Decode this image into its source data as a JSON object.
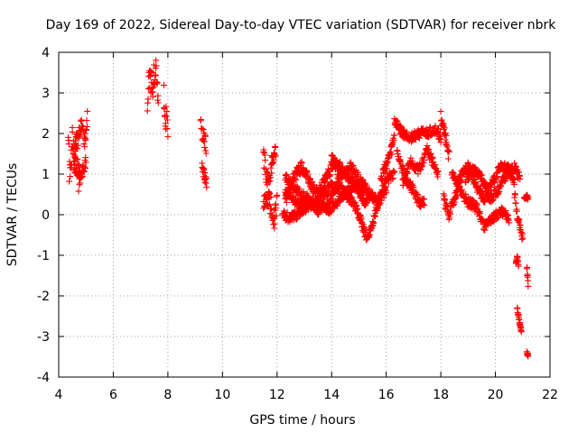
{
  "chart_data": {
    "type": "scatter",
    "title": "Day 169 of 2022, Sidereal Day-to-day VTEC variation (SDTVAR) for receiver nbrk",
    "xlabel": "GPS time / hours",
    "ylabel": "SDTVAR / TECUs",
    "xlim": [
      4,
      22
    ],
    "ylim": [
      -4,
      4
    ],
    "xticks": [
      "4",
      "6",
      "8",
      "10",
      "12",
      "14",
      "16",
      "18",
      "20",
      "22"
    ],
    "yticks": [
      "-4",
      "-3",
      "-2",
      "-1",
      "0",
      "1",
      "2",
      "3",
      "4"
    ],
    "grid": true,
    "marker": "+",
    "color": "#ff0000",
    "series": [
      {
        "name": "sdtvar",
        "segments": [
          {
            "x": [
              4.35,
              4.42,
              4.5,
              4.58,
              4.66,
              4.74,
              4.8
            ],
            "y": [
              1.5,
              0.9,
              1.7,
              1.2,
              1.8,
              0.8,
              1.3
            ],
            "band": 0.45
          },
          {
            "x": [
              4.6,
              4.72,
              4.84,
              4.95,
              5.05
            ],
            "y": [
              1.5,
              2.0,
              2.2,
              1.8,
              2.4
            ],
            "band": 0.2
          },
          {
            "x": [
              4.55,
              4.7,
              4.85,
              5.0
            ],
            "y": [
              1.2,
              1.1,
              1.0,
              1.3
            ],
            "band": 0.15
          },
          {
            "x": [
              7.25,
              7.35,
              7.45,
              7.55,
              7.65
            ],
            "y": [
              2.8,
              3.4,
              3.2,
              3.7,
              2.9
            ],
            "band": 0.35
          },
          {
            "x": [
              7.85,
              7.92,
              8.0
            ],
            "y": [
              2.9,
              2.4,
              2.1
            ],
            "band": 0.35
          },
          {
            "x": [
              9.2,
              9.3,
              9.4
            ],
            "y": [
              2.2,
              1.9,
              1.7
            ],
            "band": 0.2
          },
          {
            "x": [
              9.25,
              9.35,
              9.42
            ],
            "y": [
              1.1,
              0.9,
              0.7
            ],
            "band": 0.2
          },
          {
            "x": [
              11.5,
              11.7,
              11.9,
              12.0
            ],
            "y": [
              0.2,
              0.4,
              -0.1,
              0.3
            ],
            "band": 0.25
          },
          {
            "x": [
              11.5,
              11.6,
              11.7,
              11.8,
              11.95
            ],
            "y": [
              1.5,
              1.0,
              0.6,
              1.2,
              1.7
            ],
            "band": 0.3
          },
          {
            "x": [
              12.3,
              12.6,
              12.9,
              13.2,
              13.5,
              13.8,
              14.1,
              14.3
            ],
            "y": [
              0.3,
              0.9,
              1.2,
              0.8,
              0.5,
              0.9,
              1.3,
              1.0
            ],
            "band": 0.15
          },
          {
            "x": [
              12.2,
              12.5,
              12.9,
              13.3,
              13.7,
              14.0,
              14.4,
              14.8,
              15.1,
              15.3,
              15.5,
              15.8,
              16.1,
              16.3
            ],
            "y": [
              0.0,
              -0.1,
              0.1,
              0.3,
              0.5,
              0.7,
              0.6,
              0.3,
              -0.2,
              -0.6,
              -0.2,
              0.5,
              0.9,
              1.0
            ],
            "band": 0.12
          },
          {
            "x": [
              12.3,
              12.7,
              13.1,
              13.5,
              13.9,
              14.3,
              14.7,
              15.0,
              15.4,
              15.7,
              16.0
            ],
            "y": [
              0.9,
              0.6,
              0.4,
              0.1,
              0.3,
              0.9,
              1.2,
              0.9,
              0.5,
              0.3,
              0.6
            ],
            "band": 0.12
          },
          {
            "x": [
              12.3,
              12.7,
              13.1,
              13.5,
              13.9,
              14.2,
              14.6,
              14.9,
              15.2,
              15.5
            ],
            "y": [
              0.6,
              0.3,
              0.2,
              0.3,
              0.1,
              0.3,
              0.6,
              0.7,
              0.3,
              0.5
            ],
            "band": 0.1
          },
          {
            "x": [
              14.0,
              14.3,
              14.6,
              14.9,
              15.2
            ],
            "y": [
              1.4,
              1.2,
              0.9,
              0.8,
              0.6
            ],
            "band": 0.1
          },
          {
            "x": [
              15.8,
              16.0,
              16.2,
              16.3
            ],
            "y": [
              0.9,
              1.2,
              1.6,
              2.0
            ],
            "band": 0.15
          },
          {
            "x": [
              16.3,
              16.6,
              16.9,
              17.2,
              17.5,
              17.8,
              18.0
            ],
            "y": [
              2.3,
              2.0,
              1.9,
              2.0,
              2.0,
              2.1,
              1.9
            ],
            "band": 0.12
          },
          {
            "x": [
              16.4,
              16.6,
              16.8,
              17.0,
              17.2,
              17.4
            ],
            "y": [
              1.5,
              1.1,
              0.8,
              0.6,
              0.3,
              0.3
            ],
            "band": 0.12
          },
          {
            "x": [
              16.6,
              16.9,
              17.2,
              17.5,
              17.7,
              17.9
            ],
            "y": [
              0.8,
              1.3,
              1.1,
              1.6,
              1.3,
              1.0
            ],
            "band": 0.12
          },
          {
            "x": [
              18.0,
              18.1,
              18.2,
              18.3
            ],
            "y": [
              2.4,
              2.1,
              1.8,
              1.4
            ],
            "band": 0.15
          },
          {
            "x": [
              18.1,
              18.3,
              18.5,
              18.7,
              19.0,
              19.3,
              19.6,
              19.9,
              20.2,
              20.5,
              20.7
            ],
            "y": [
              0.4,
              0.0,
              0.4,
              0.9,
              1.2,
              0.7,
              0.4,
              0.8,
              1.2,
              1.1,
              0.8
            ],
            "band": 0.12
          },
          {
            "x": [
              18.4,
              18.7,
              19.0,
              19.3,
              19.6,
              19.9,
              20.2,
              20.5
            ],
            "y": [
              1.0,
              0.6,
              0.3,
              0.2,
              -0.3,
              -0.1,
              0.1,
              -0.1
            ],
            "band": 0.12
          },
          {
            "x": [
              18.9,
              19.2,
              19.5,
              19.8,
              20.1,
              20.4,
              20.7,
              20.9
            ],
            "y": [
              0.9,
              1.1,
              0.9,
              0.4,
              0.6,
              1.0,
              1.2,
              0.9
            ],
            "band": 0.12
          },
          {
            "x": [
              20.7,
              20.8,
              20.9,
              21.0
            ],
            "y": [
              0.5,
              0.0,
              -0.3,
              -0.6
            ],
            "band": 0.12
          },
          {
            "x": [
              20.75,
              20.8,
              20.85
            ],
            "y": [
              -1.2,
              -1.05,
              -1.25
            ],
            "band": 0.05
          },
          {
            "x": [
              20.8,
              20.85,
              20.9,
              20.95
            ],
            "y": [
              -2.3,
              -2.5,
              -2.7,
              -2.85
            ],
            "band": 0.05
          },
          {
            "x": [
              21.15,
              21.2
            ],
            "y": [
              -1.3,
              -1.8
            ],
            "band": 0.1
          },
          {
            "x": [
              21.15,
              21.2
            ],
            "y": [
              -3.4,
              -3.45
            ],
            "band": 0.05
          },
          {
            "x": [
              21.05,
              21.15,
              21.2
            ],
            "y": [
              0.4,
              0.45,
              0.4
            ],
            "band": 0.05
          }
        ]
      }
    ]
  }
}
